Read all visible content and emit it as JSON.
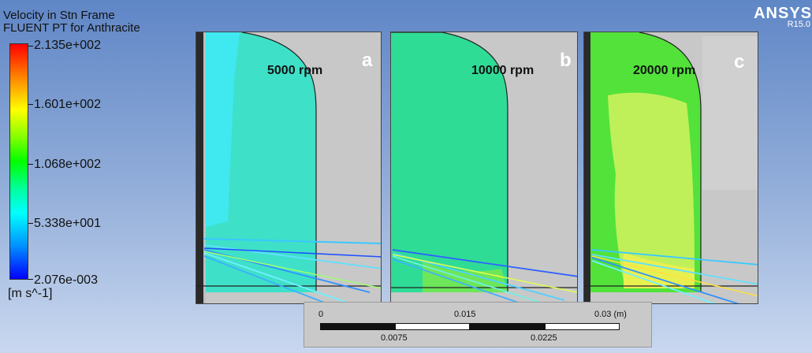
{
  "legend": {
    "title": "Velocity in Stn Frame",
    "subtitle": "FLUENT PT for Anthracite",
    "values": [
      "2.135e+002",
      "1.601e+002",
      "1.068e+002",
      "5.338e+001",
      "2.076e-003"
    ],
    "unit": "[m s^-1]"
  },
  "brand": {
    "name": "ANSYS",
    "version": "R15.0"
  },
  "panels": [
    {
      "letter": "a",
      "label": "5000 rpm"
    },
    {
      "letter": "b",
      "label": "10000 rpm"
    },
    {
      "letter": "c",
      "label": "20000 rpm"
    }
  ],
  "scale_bar": {
    "top_labels": [
      "0",
      "0.015",
      "0.03 (m)"
    ],
    "bottom_labels": [
      "0.0075",
      "0.0225"
    ]
  },
  "colors": {
    "panel_a_main": "#3ee0c8",
    "panel_a_edge": "#40e8f0",
    "panel_b_main": "#2fdc96",
    "panel_c_main": "#52e23a",
    "panel_c_core": "#bff05a",
    "geometry_gray": "#c8c8c8"
  }
}
